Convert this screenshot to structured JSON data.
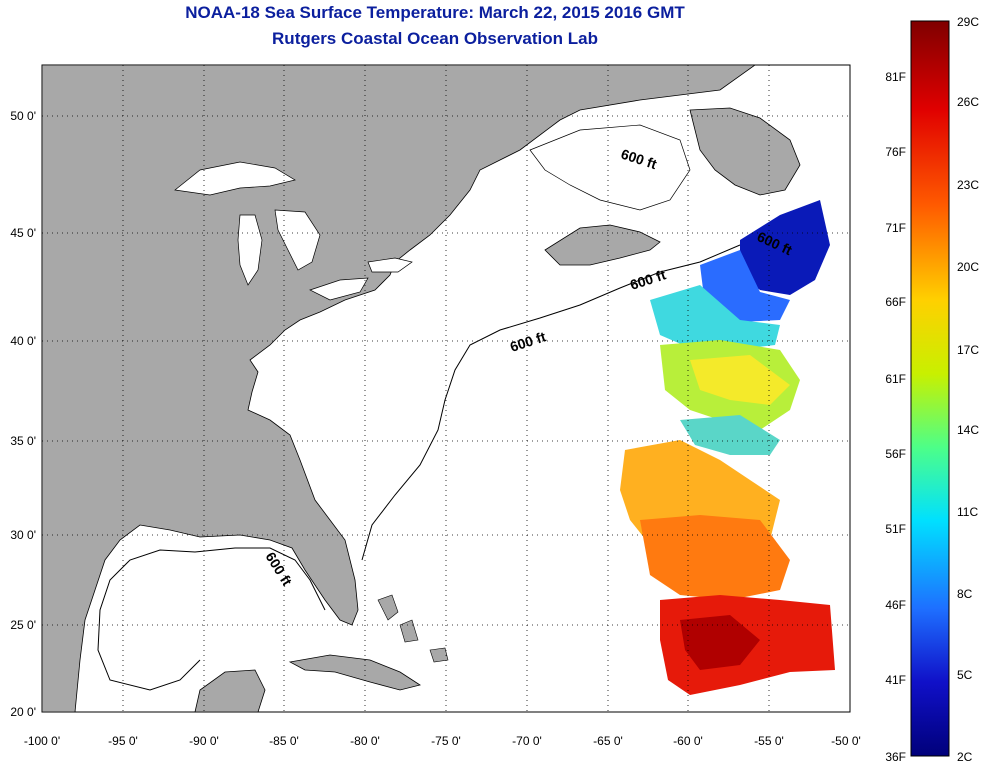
{
  "title": "NOAA-18 Sea Surface Temperature:  March 22, 2015 2016 GMT",
  "subtitle": "Rutgers Coastal Ocean Observation Lab",
  "map": {
    "extent": {
      "lon": [
        -100,
        -50
      ],
      "lat": [
        20,
        52.5
      ]
    },
    "grid": true,
    "land_color": "#a8a8a8",
    "ocean_color": "#ffffff",
    "lon_ticks": [
      {
        "value": -100,
        "label": "-100 0'"
      },
      {
        "value": -95,
        "label": "-95 0'"
      },
      {
        "value": -90,
        "label": "-90 0'"
      },
      {
        "value": -85,
        "label": "-85 0'"
      },
      {
        "value": -80,
        "label": "-80 0'"
      },
      {
        "value": -75,
        "label": "-75 0'"
      },
      {
        "value": -70,
        "label": "-70 0'"
      },
      {
        "value": -65,
        "label": "-65 0'"
      },
      {
        "value": -60,
        "label": "-60 0'"
      },
      {
        "value": -55,
        "label": "-55 0'"
      },
      {
        "value": -50,
        "label": "-50 0'"
      }
    ],
    "lat_ticks": [
      {
        "value": 50,
        "label": "50 0'"
      },
      {
        "value": 45,
        "label": "45 0'"
      },
      {
        "value": 40,
        "label": "40 0'"
      },
      {
        "value": 35,
        "label": "35 0'"
      },
      {
        "value": 30,
        "label": "30 0'"
      },
      {
        "value": 25,
        "label": "25 0'"
      },
      {
        "value": 20,
        "label": "20 0'"
      }
    ],
    "contour_label": "600 ft"
  },
  "colorbar": {
    "celsius": [
      "29C",
      "26C",
      "23C",
      "20C",
      "17C",
      "14C",
      "11C",
      "8C",
      "5C",
      "2C"
    ],
    "fahrenheit": [
      "81F",
      "76F",
      "71F",
      "66F",
      "61F",
      "56F",
      "51F",
      "46F",
      "41F",
      "36F"
    ],
    "colors": [
      "#7f0000",
      "#e00000",
      "#ff6a00",
      "#ffd400",
      "#c8f000",
      "#4dff88",
      "#00e0ff",
      "#1e6fff",
      "#1010c8",
      "#00007a"
    ]
  }
}
